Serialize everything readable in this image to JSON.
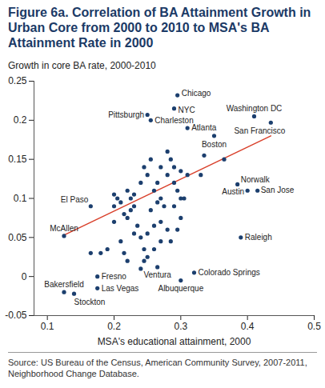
{
  "chart_data": {
    "type": "scatter",
    "title": "Figure 6a. Correlation of BA Attainment Growth in Urban Core from 2000 to 2010 to MSA's BA Attainment Rate in 2000",
    "y_label": "Growth in core BA rate, 2000-2010",
    "x_label": "MSA's educational attainment, 2000",
    "source": "Source: US Bureau of the Census, American Community Survey, 2007-2011, Neighborhood Change Database.",
    "color": "#1c3f6e",
    "xlim": [
      0.08,
      0.5
    ],
    "xticks": [
      0.1,
      0.2,
      0.3,
      0.4,
      0.5
    ],
    "ylim": [
      -0.05,
      0.25
    ],
    "yticks": [
      -0.05,
      0,
      0.05,
      0.1,
      0.15,
      0.2,
      0.25
    ],
    "grid": false,
    "point_labels": [
      "Chicago",
      "NYC",
      "Pittsburgh",
      "Charleston",
      "Atlanta",
      "Boston",
      "Washington DC",
      "San Francisco",
      "El Paso",
      "McAllen",
      "Fresno",
      "Las Vegas",
      "Bakersfield",
      "Stockton",
      "Ventura",
      "Colorado Springs",
      "Albuquerque",
      "Norwalk",
      "Austin",
      "San Jose",
      "Raleigh",
      null,
      null,
      null,
      null,
      null,
      null,
      null,
      null,
      null,
      null,
      null,
      null,
      null,
      null,
      null,
      null,
      null,
      null,
      null,
      null,
      null,
      null,
      null,
      null,
      null,
      null,
      null,
      null,
      null,
      null,
      null,
      null,
      null,
      null,
      null,
      null,
      null,
      null,
      null,
      null,
      null,
      null,
      null,
      null,
      null,
      null,
      null,
      null,
      null,
      null,
      null,
      null,
      null,
      null,
      null,
      null
    ],
    "x": [
      0.295,
      0.29,
      0.25,
      0.255,
      0.31,
      0.35,
      0.41,
      0.435,
      0.165,
      0.125,
      0.175,
      0.175,
      0.125,
      0.14,
      0.265,
      0.32,
      0.3,
      0.385,
      0.4,
      0.415,
      0.39,
      0.2,
      0.205,
      0.21,
      0.2,
      0.215,
      0.22,
      0.225,
      0.23,
      0.22,
      0.225,
      0.24,
      0.245,
      0.25,
      0.255,
      0.26,
      0.265,
      0.27,
      0.27,
      0.275,
      0.28,
      0.28,
      0.285,
      0.29,
      0.29,
      0.295,
      0.3,
      0.31,
      0.305,
      0.33,
      0.335,
      0.365,
      0.255,
      0.26,
      0.27,
      0.28,
      0.285,
      0.29,
      0.295,
      0.3,
      0.24,
      0.235,
      0.25,
      0.21,
      0.215,
      0.22,
      0.24,
      0.245,
      0.25,
      0.26,
      0.245,
      0.27,
      0.23,
      0.2,
      0.19,
      0.18,
      0.165,
      0.23,
      0.265,
      0.3
    ],
    "y": [
      0.232,
      0.215,
      0.207,
      0.2,
      0.19,
      0.18,
      0.205,
      0.197,
      0.09,
      0.052,
      0.0,
      -0.015,
      -0.02,
      -0.022,
      0.012,
      0.005,
      -0.005,
      0.118,
      0.11,
      0.11,
      0.05,
      0.105,
      0.1,
      0.095,
      0.09,
      0.08,
      0.075,
      0.085,
      0.09,
      0.11,
      0.1,
      0.12,
      0.14,
      0.13,
      0.15,
      0.11,
      0.12,
      0.14,
      0.1,
      0.09,
      0.13,
      0.16,
      0.15,
      0.14,
      0.12,
      0.11,
      0.135,
      0.13,
      0.1,
      0.13,
      0.155,
      0.15,
      0.085,
      0.065,
      0.07,
      0.06,
      0.045,
      0.09,
      0.06,
      0.075,
      0.05,
      0.065,
      0.055,
      0.045,
      0.03,
      0.02,
      0.01,
      0.02,
      0.025,
      0.035,
      0.035,
      0.045,
      0.055,
      0.07,
      0.035,
      0.03,
      0.03,
      0.105,
      0.095,
      0.1
    ],
    "trendline": {
      "color": "#d9402b",
      "x": [
        0.125,
        0.435
      ],
      "y": [
        0.053,
        0.18
      ]
    }
  }
}
